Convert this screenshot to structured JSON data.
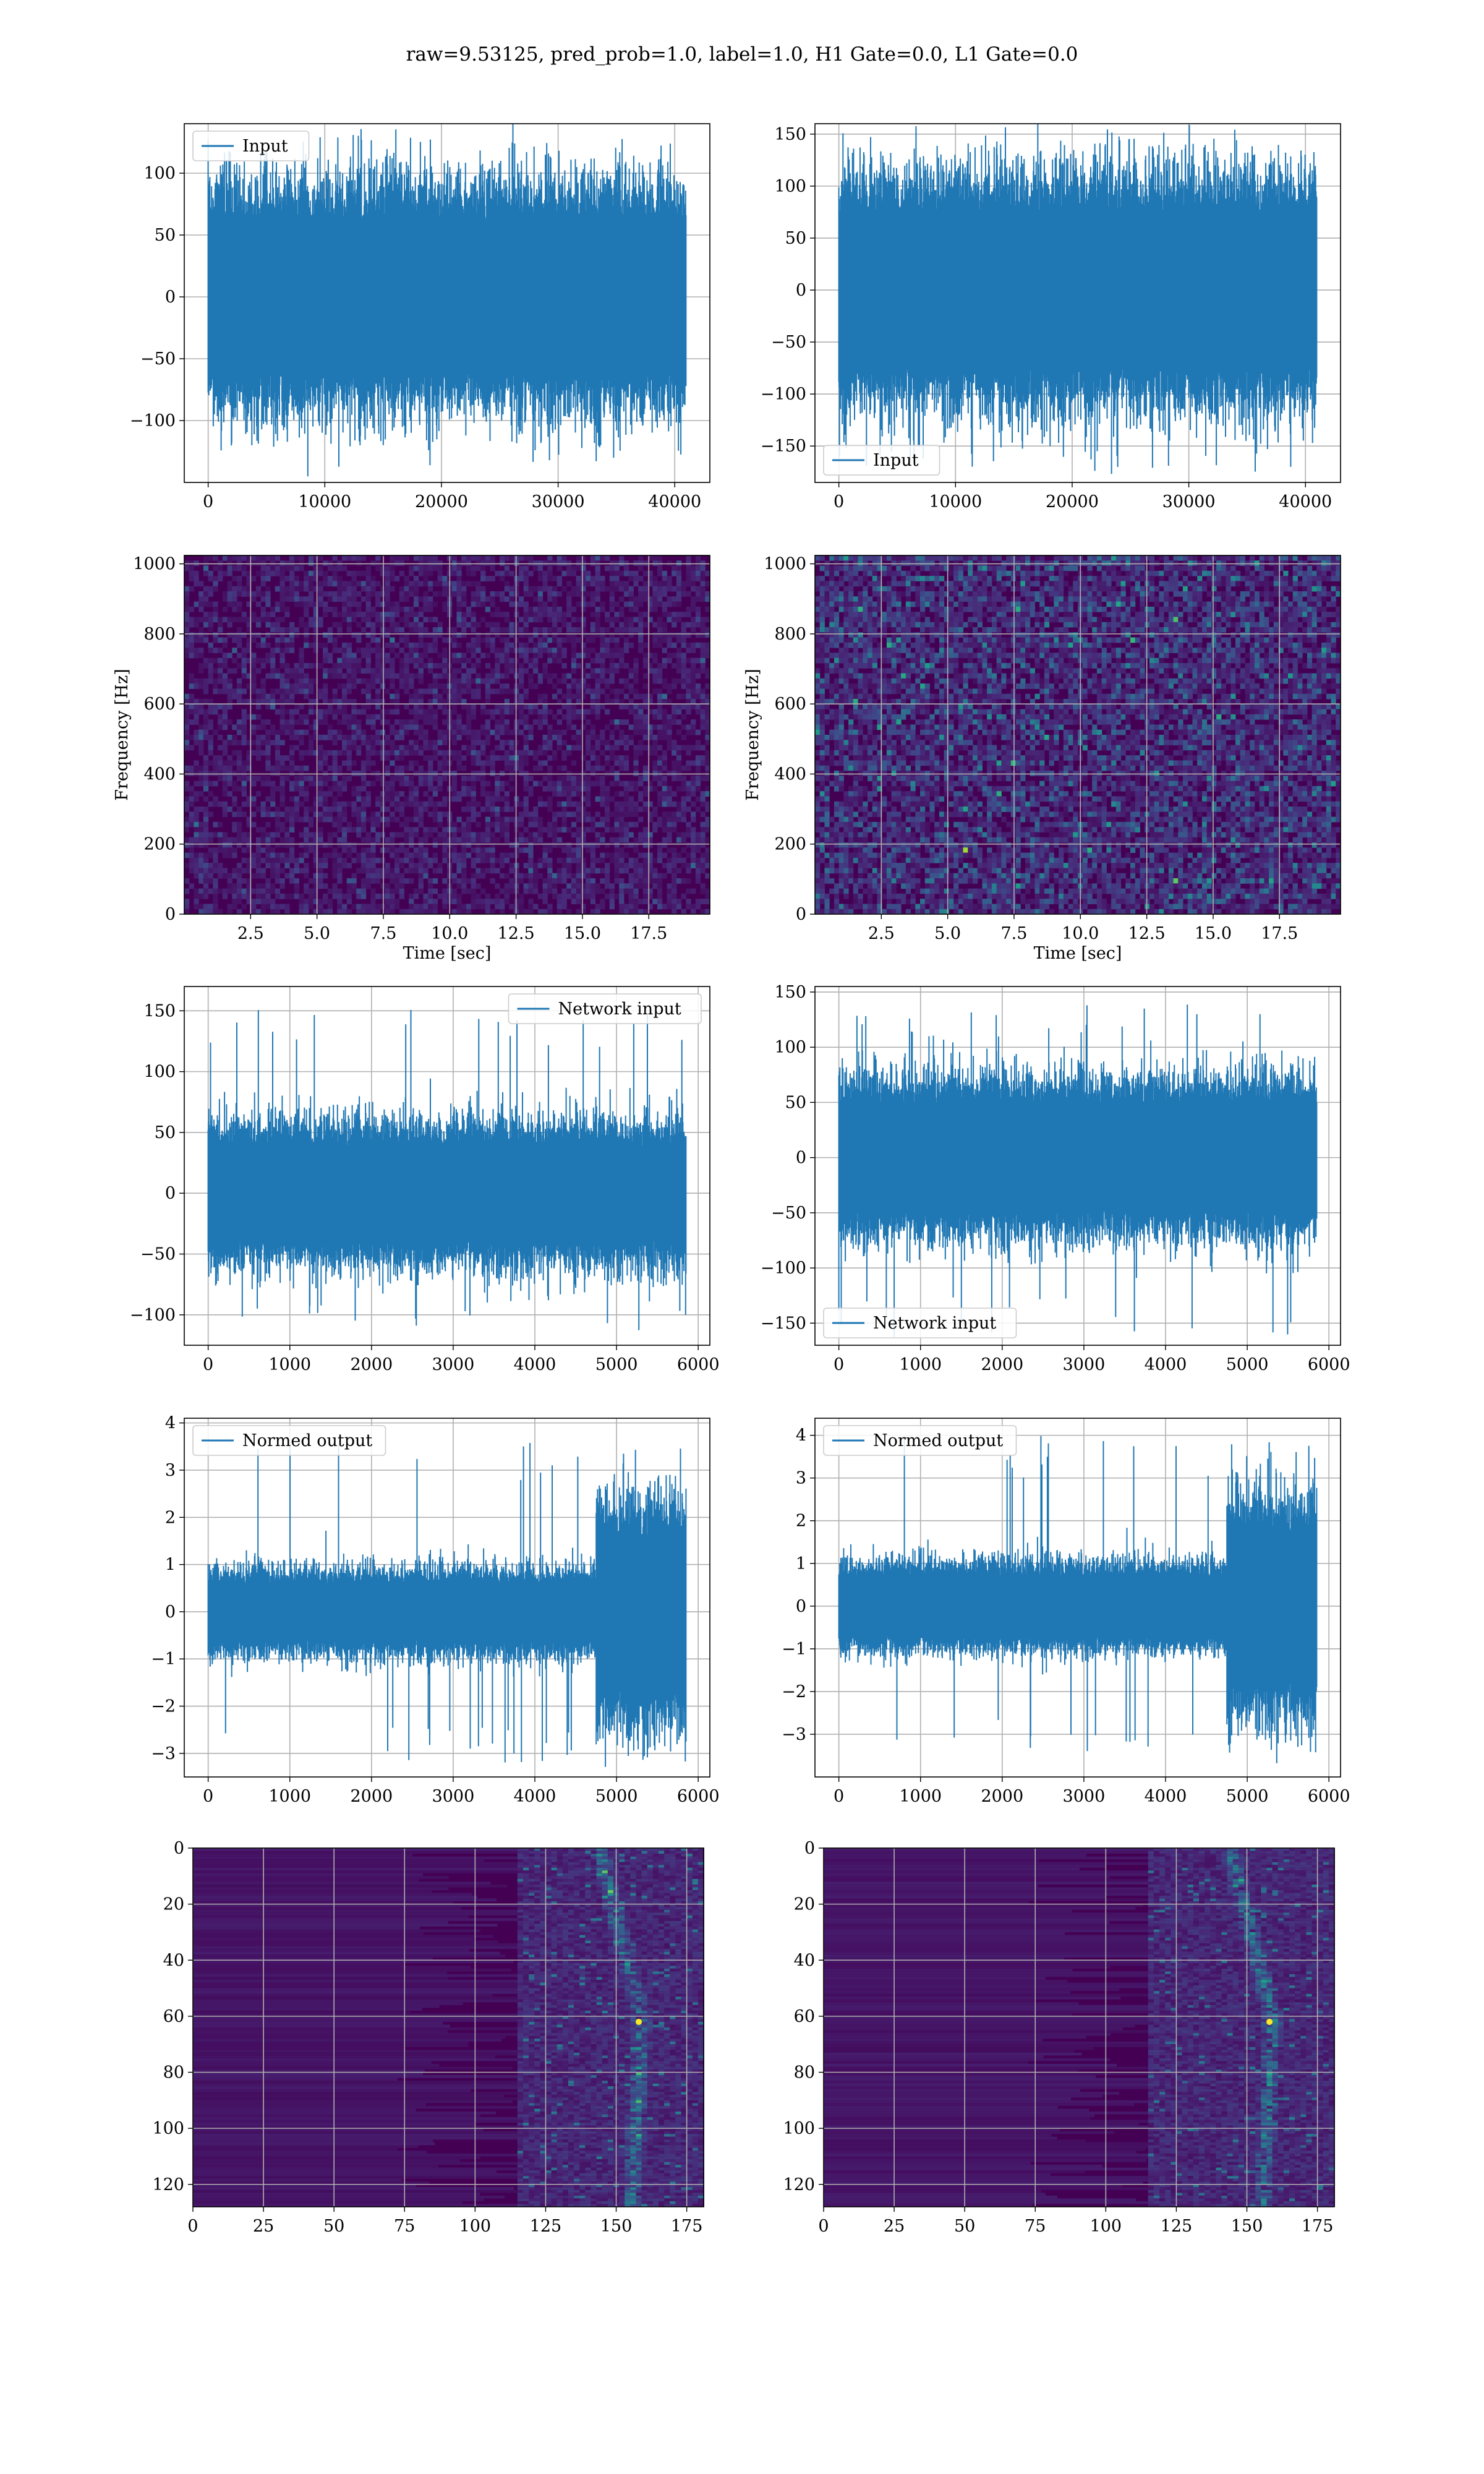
{
  "figure": {
    "suptitle": "raw=9.53125, pred_prob=1.0, label=1.0, H1 Gate=0.0, L1 Gate=0.0"
  },
  "colors": {
    "line": "#1f77b4",
    "viridis_low": "#440154",
    "grid": "#b0b0b0"
  },
  "chart_data": [
    {
      "id": "h1-input",
      "type": "line",
      "legend": "Input",
      "legend_loc": "upper-left",
      "x_range": [
        0,
        40960
      ],
      "ylim": [
        -150,
        140
      ],
      "xticks": [
        0,
        10000,
        20000,
        30000,
        40000
      ],
      "yticks": [
        -100,
        -50,
        0,
        50,
        100
      ],
      "envelope": {
        "upper_typ": 70,
        "upper_max": 130,
        "lower_typ": -70,
        "lower_min": -135
      }
    },
    {
      "id": "l1-input",
      "type": "line",
      "legend": "Input",
      "legend_loc": "lower-left",
      "x_range": [
        0,
        40960
      ],
      "ylim": [
        -185,
        160
      ],
      "xticks": [
        0,
        10000,
        20000,
        30000,
        40000
      ],
      "yticks": [
        -150,
        -100,
        -50,
        0,
        50,
        100,
        150
      ],
      "envelope": {
        "upper_typ": 85,
        "upper_max": 150,
        "lower_typ": -85,
        "lower_min": -175
      }
    },
    {
      "id": "h1-spectrogram",
      "type": "heatmap",
      "xlabel": "Time [sec]",
      "ylabel": "Frequency [Hz]",
      "xlim": [
        0,
        19.8
      ],
      "ylim": [
        0,
        1024
      ],
      "xticks": [
        "2.5",
        "5.0",
        "7.5",
        "10.0",
        "12.5",
        "15.0",
        "17.5"
      ],
      "yticks": [
        "0",
        "200",
        "400",
        "600",
        "800",
        "1000"
      ],
      "intensity": "low"
    },
    {
      "id": "l1-spectrogram",
      "type": "heatmap",
      "xlabel": "Time [sec]",
      "ylabel": "Frequency [Hz]",
      "xlim": [
        0,
        19.8
      ],
      "ylim": [
        0,
        1024
      ],
      "xticks": [
        "2.5",
        "5.0",
        "7.5",
        "10.0",
        "12.5",
        "15.0",
        "17.5"
      ],
      "yticks": [
        "0",
        "200",
        "400",
        "600",
        "800",
        "1000"
      ],
      "intensity": "medium"
    },
    {
      "id": "h1-network-input",
      "type": "line",
      "legend": "Network input",
      "legend_loc": "upper-right",
      "x_range": [
        0,
        5850
      ],
      "ylim": [
        -125,
        170
      ],
      "xticks": [
        0,
        1000,
        2000,
        3000,
        4000,
        5000,
        6000
      ],
      "yticks": [
        -100,
        -50,
        0,
        50,
        100,
        150
      ],
      "envelope": {
        "upper_typ": 45,
        "upper_max": 155,
        "lower_typ": -45,
        "lower_min": -115
      }
    },
    {
      "id": "l1-network-input",
      "type": "line",
      "legend": "Network input",
      "legend_loc": "lower-left",
      "x_range": [
        0,
        5850
      ],
      "ylim": [
        -170,
        155
      ],
      "xticks": [
        0,
        1000,
        2000,
        3000,
        4000,
        5000,
        6000
      ],
      "yticks": [
        -150,
        -100,
        -50,
        0,
        50,
        100,
        150
      ],
      "envelope": {
        "upper_typ": 55,
        "upper_max": 140,
        "lower_typ": -55,
        "lower_min": -165
      }
    },
    {
      "id": "h1-normed-output",
      "type": "line",
      "legend": "Normed output",
      "legend_loc": "upper-left",
      "x_range": [
        0,
        5850
      ],
      "ylim": [
        -3.5,
        4.1
      ],
      "xticks": [
        0,
        1000,
        2000,
        3000,
        4000,
        5000,
        6000
      ],
      "yticks": [
        -3,
        -2,
        -1,
        0,
        1,
        2,
        3,
        4
      ],
      "envelope": {
        "upper_typ": 0.7,
        "upper_max": 3.7,
        "lower_typ": -0.7,
        "lower_min": -3.2
      },
      "burst": {
        "x_start": 4750,
        "x_end": 5850,
        "upper_typ": 1.8,
        "lower_typ": -1.8
      }
    },
    {
      "id": "l1-normed-output",
      "type": "line",
      "legend": "Normed output",
      "legend_loc": "upper-left",
      "x_range": [
        0,
        5850
      ],
      "ylim": [
        -4.0,
        4.4
      ],
      "xticks": [
        0,
        1000,
        2000,
        3000,
        4000,
        5000,
        6000
      ],
      "yticks": [
        -3,
        -2,
        -1,
        0,
        1,
        2,
        3,
        4
      ],
      "envelope": {
        "upper_typ": 0.8,
        "upper_max": 4.0,
        "lower_typ": -0.8,
        "lower_min": -3.5
      },
      "burst": {
        "x_start": 4750,
        "x_end": 5850,
        "upper_typ": 2.0,
        "lower_typ": -2.0
      }
    },
    {
      "id": "h1-qtransform",
      "type": "heatmap",
      "xlim": [
        0,
        181
      ],
      "ylim": [
        128,
        0
      ],
      "xticks": [
        "0",
        "25",
        "50",
        "75",
        "100",
        "125",
        "150",
        "175"
      ],
      "yticks": [
        "0",
        "20",
        "40",
        "60",
        "80",
        "100",
        "120"
      ],
      "intensity": "chirp"
    },
    {
      "id": "l1-qtransform",
      "type": "heatmap",
      "xlim": [
        0,
        181
      ],
      "ylim": [
        128,
        0
      ],
      "xticks": [
        "0",
        "25",
        "50",
        "75",
        "100",
        "125",
        "150",
        "175"
      ],
      "yticks": [
        "0",
        "20",
        "40",
        "60",
        "80",
        "100",
        "120"
      ],
      "intensity": "chirp"
    }
  ]
}
